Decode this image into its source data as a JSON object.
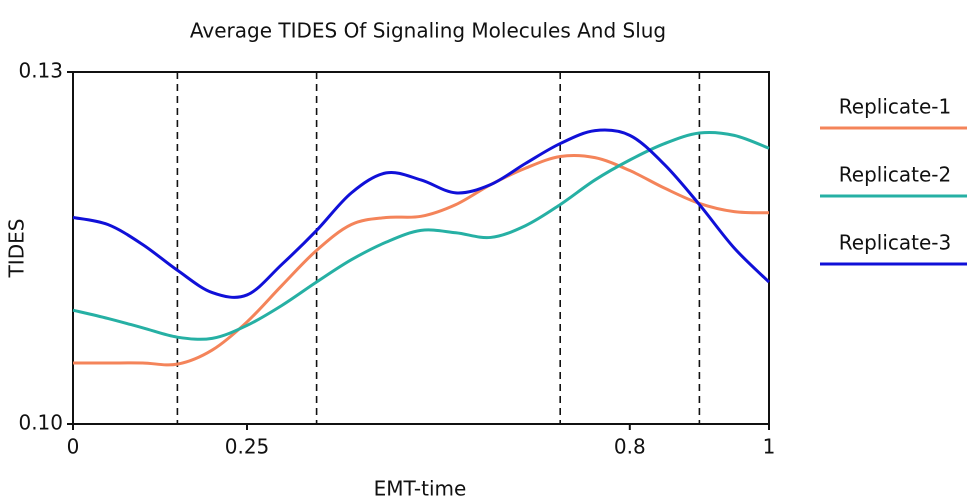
{
  "chart_data": {
    "type": "line",
    "title": "Average TIDES Of Signaling Molecules And Slug",
    "x_label": "EMT-time",
    "y_label": "TIDES",
    "x": [
      0,
      0.05,
      0.1,
      0.15,
      0.2,
      0.25,
      0.3,
      0.35,
      0.4,
      0.45,
      0.5,
      0.55,
      0.6,
      0.65,
      0.7,
      0.75,
      0.8,
      0.85,
      0.9,
      0.95,
      1
    ],
    "series": [
      {
        "name": "Replicate-1",
        "color": "#f4845a",
        "values": [
          0.1052,
          0.1052,
          0.1052,
          0.1051,
          0.1063,
          0.1087,
          0.1118,
          0.1148,
          0.117,
          0.1176,
          0.1177,
          0.1187,
          0.1204,
          0.1218,
          0.1228,
          0.1227,
          0.1216,
          0.1201,
          0.1188,
          0.1181,
          0.118
        ]
      },
      {
        "name": "Replicate-2",
        "color": "#26b0a4",
        "values": [
          0.1097,
          0.109,
          0.1082,
          0.1074,
          0.1073,
          0.1084,
          0.1101,
          0.1121,
          0.114,
          0.1155,
          0.1165,
          0.1163,
          0.1159,
          0.1169,
          0.1187,
          0.1208,
          0.1225,
          0.1239,
          0.1248,
          0.1246,
          0.1235
        ]
      },
      {
        "name": "Replicate-3",
        "color": "#1010d8",
        "values": [
          0.1176,
          0.117,
          0.1153,
          0.1131,
          0.1112,
          0.111,
          0.1136,
          0.1165,
          0.1197,
          0.1214,
          0.1208,
          0.1197,
          0.1204,
          0.1222,
          0.1239,
          0.125,
          0.1246,
          0.1221,
          0.1187,
          0.115,
          0.1121
        ]
      }
    ],
    "vlines": [
      0.15,
      0.35,
      0.7,
      0.9
    ],
    "xlim": [
      0,
      1
    ],
    "ylim": [
      0.1,
      0.13
    ],
    "xticks": [
      0,
      0.25,
      0.8,
      1
    ],
    "yticks": [
      {
        "value": 0.1,
        "label": "0.10"
      },
      0.13
    ],
    "legend": "right"
  }
}
